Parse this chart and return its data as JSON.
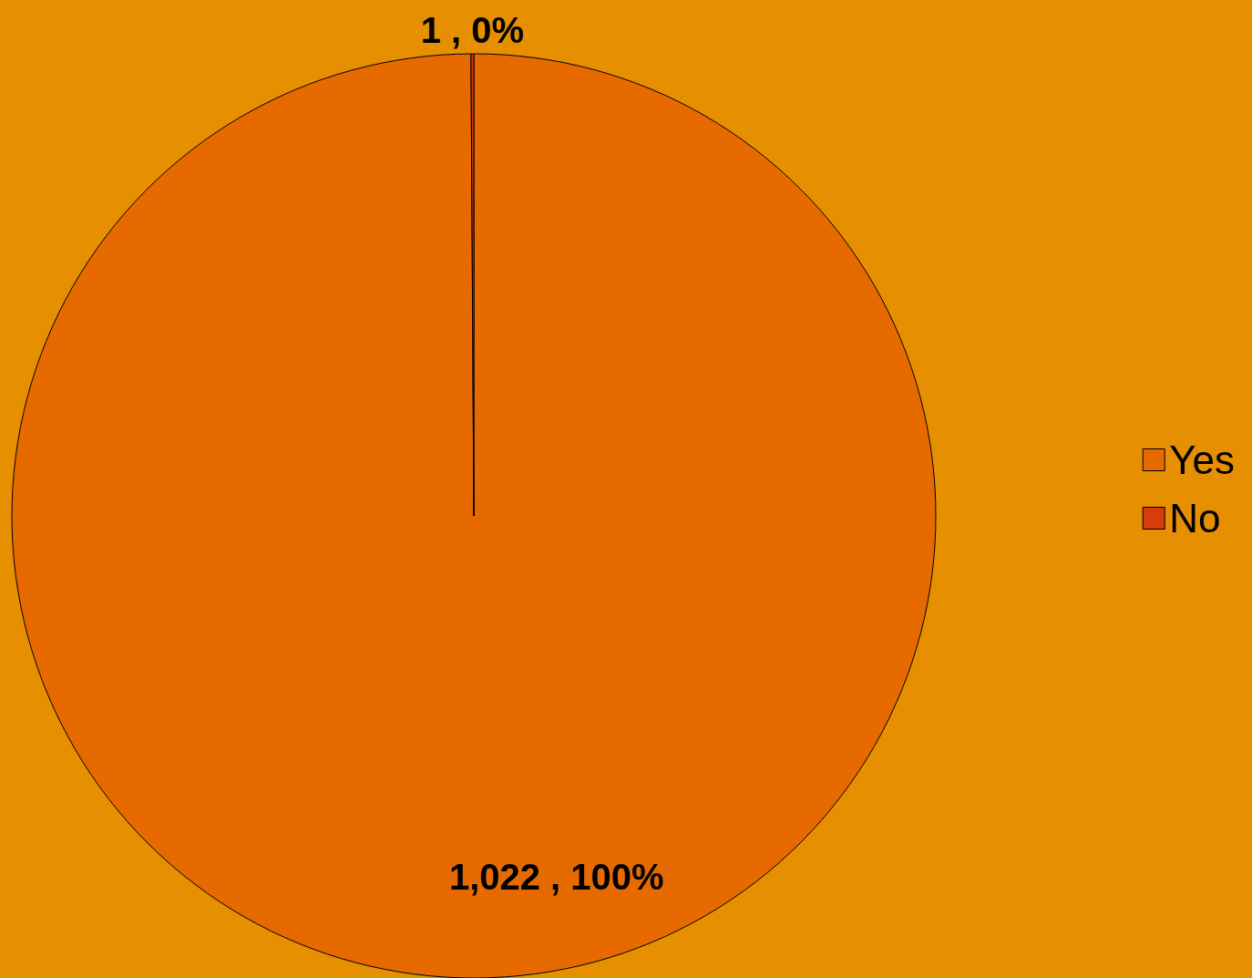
{
  "chart_data": {
    "type": "pie",
    "categories": [
      "Yes",
      "No"
    ],
    "values": [
      1022,
      1
    ],
    "colors": [
      "#e66a00",
      "#d83c0c"
    ],
    "value_labels": [
      "1,022 , 100%",
      "1 , 0%"
    ],
    "legend": "right"
  }
}
